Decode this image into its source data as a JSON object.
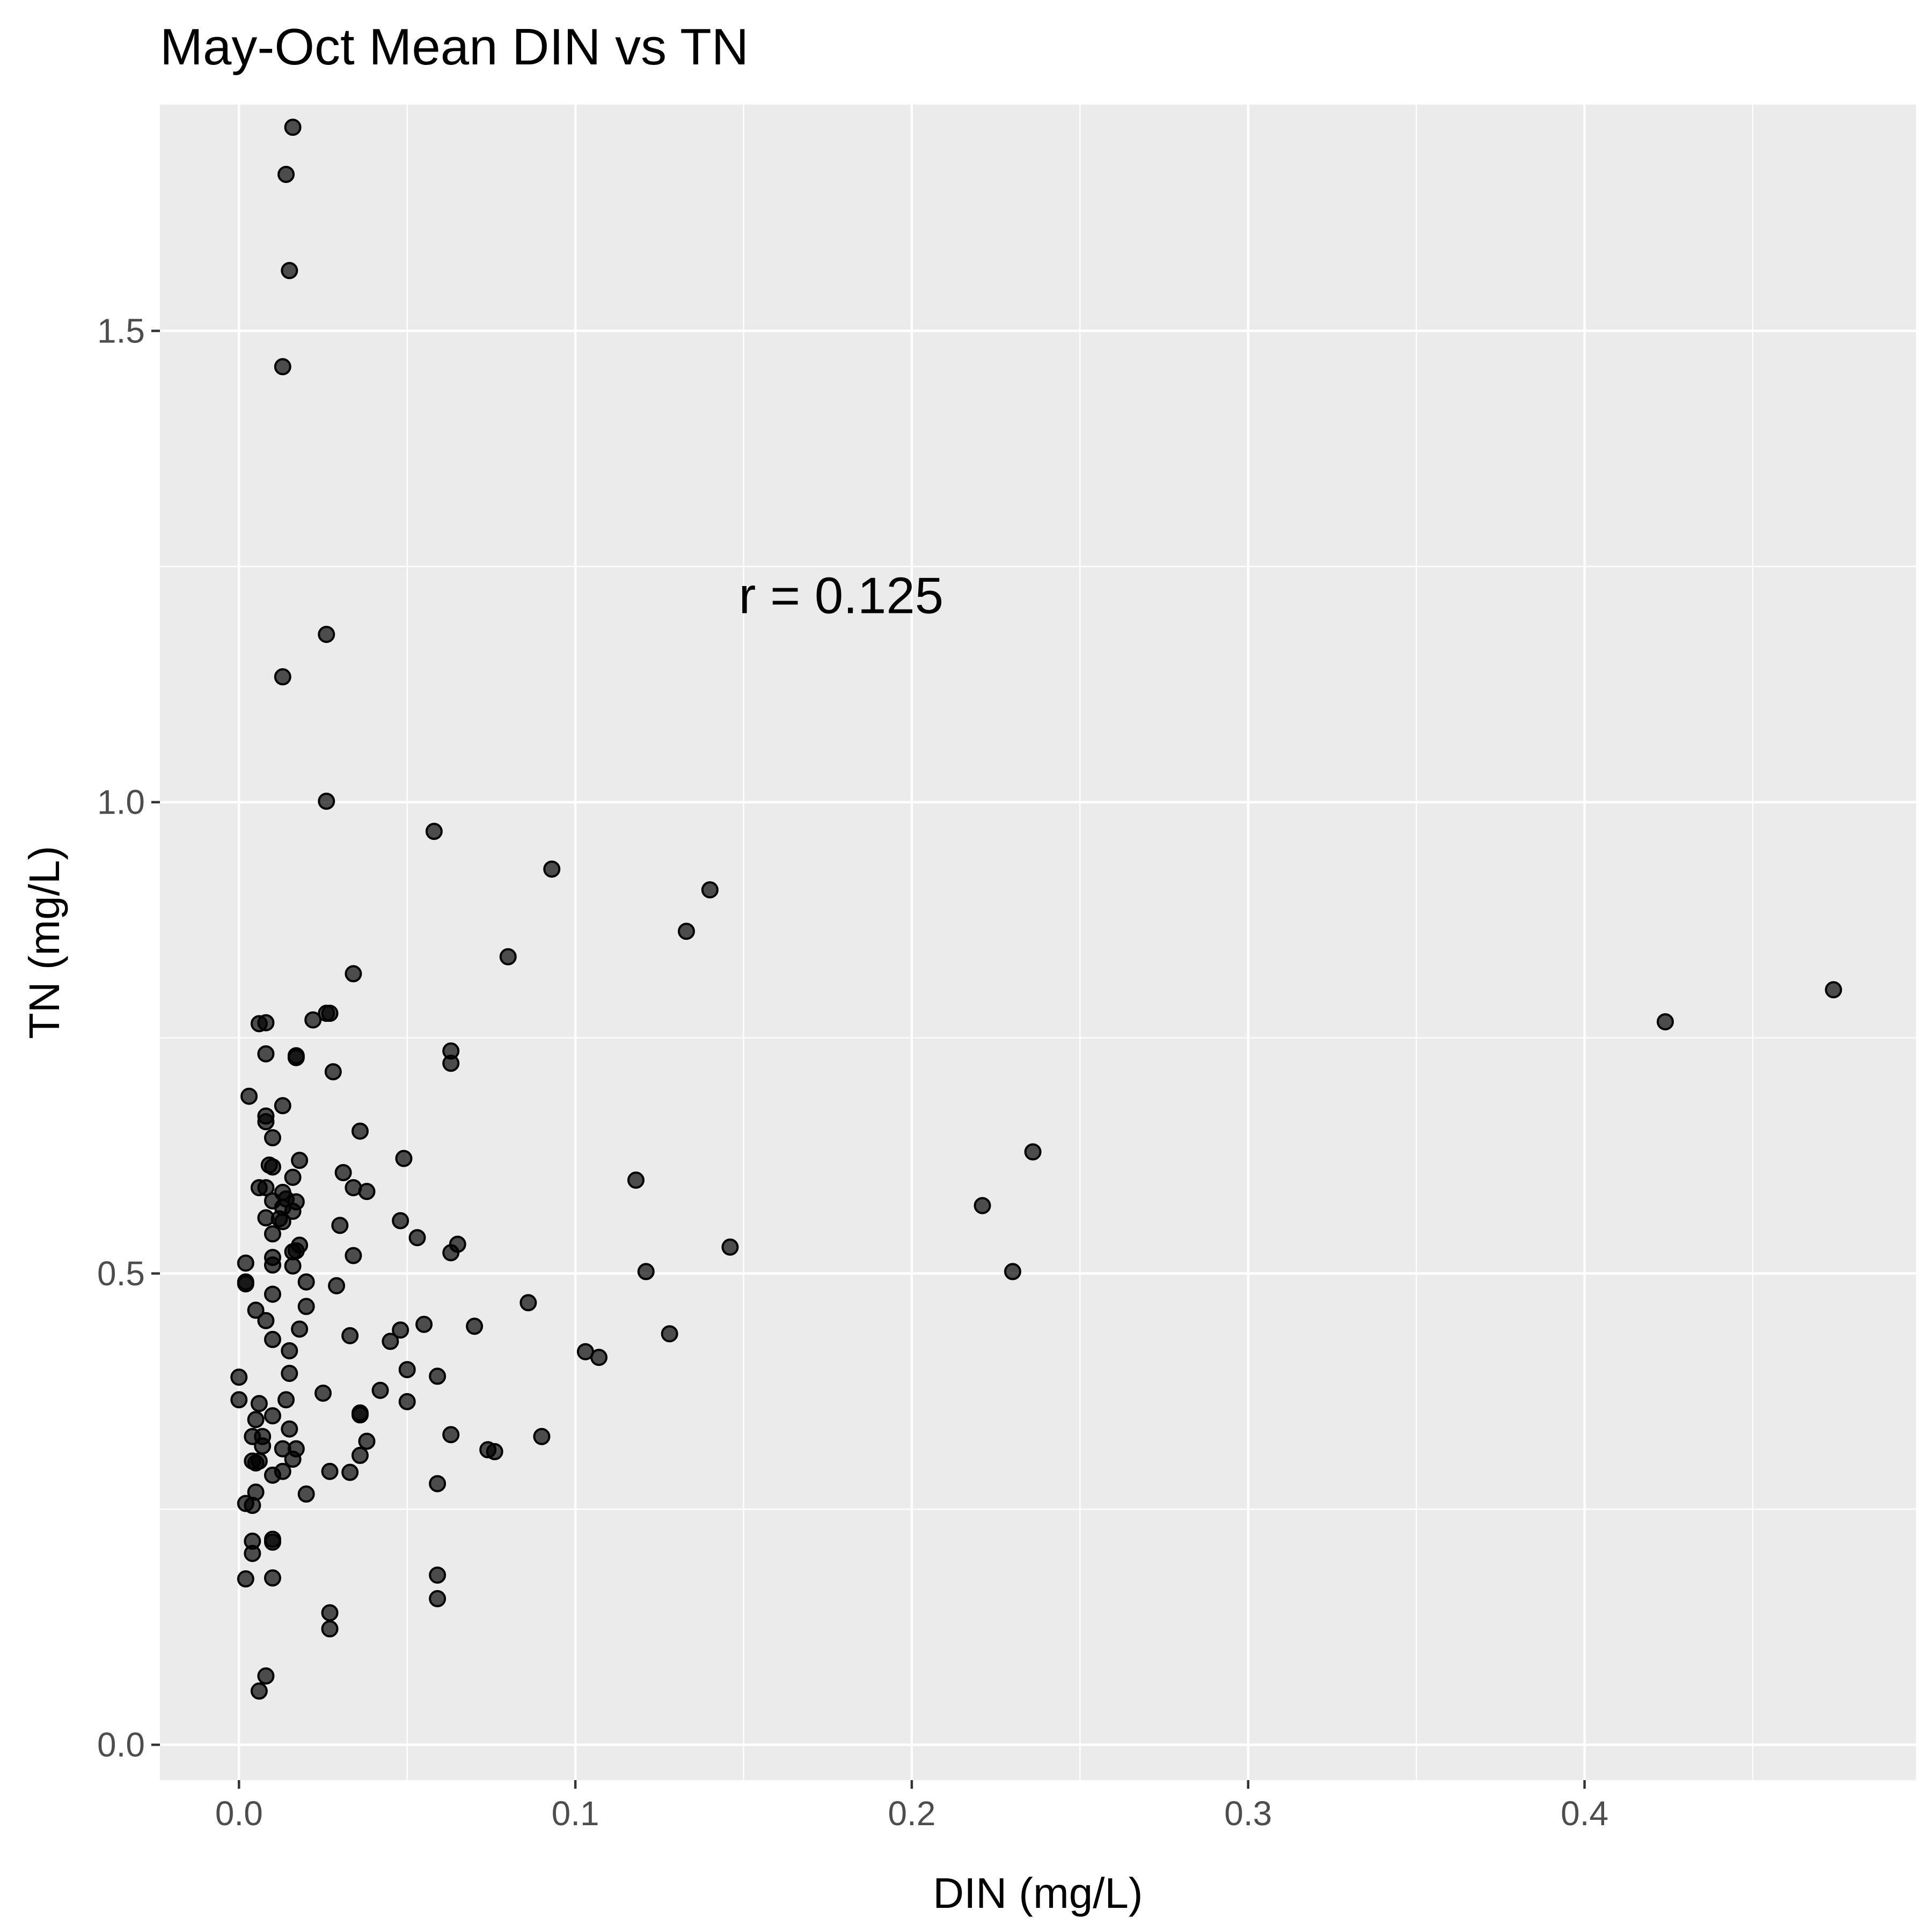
{
  "chart_data": {
    "type": "scatter",
    "title": "May-Oct Mean DIN vs TN",
    "xlabel": "DIN (mg/L)",
    "ylabel": "TN (mg/L)",
    "xlim": [
      -0.0235,
      0.4985
    ],
    "ylim": [
      -0.0375,
      1.74
    ],
    "xticks": [
      0.0,
      0.1,
      0.2,
      0.3,
      0.4
    ],
    "xtick_labels": [
      "0.0",
      "0.1",
      "0.2",
      "0.3",
      "0.4"
    ],
    "yticks": [
      0.0,
      0.5,
      1.0,
      1.5
    ],
    "ytick_labels": [
      "0.0",
      "0.5",
      "1.0",
      "1.5"
    ],
    "grid": true,
    "legend": "none",
    "annotation": {
      "text": "r = 0.125",
      "x": 0.179,
      "y": 1.22
    },
    "colors": {
      "panel": "#ebebeb",
      "grid": "#ffffff",
      "point": "#000000",
      "tick_text": "#4d4d4d"
    },
    "points": [
      [
        0.016,
        1.716
      ],
      [
        0.014,
        1.666
      ],
      [
        0.015,
        1.564
      ],
      [
        0.013,
        1.462
      ],
      [
        0.026,
        1.178
      ],
      [
        0.013,
        1.133
      ],
      [
        0.026,
        1.001
      ],
      [
        0.058,
        0.969
      ],
      [
        0.093,
        0.929
      ],
      [
        0.14,
        0.907
      ],
      [
        0.133,
        0.863
      ],
      [
        0.08,
        0.836
      ],
      [
        0.034,
        0.818
      ],
      [
        0.026,
        0.776
      ],
      [
        0.027,
        0.776
      ],
      [
        0.022,
        0.769
      ],
      [
        0.006,
        0.765
      ],
      [
        0.008,
        0.766
      ],
      [
        0.008,
        0.733
      ],
      [
        0.017,
        0.729
      ],
      [
        0.017,
        0.731
      ],
      [
        0.063,
        0.736
      ],
      [
        0.063,
        0.723
      ],
      [
        0.028,
        0.714
      ],
      [
        0.474,
        0.801
      ],
      [
        0.424,
        0.767
      ],
      [
        0.003,
        0.688
      ],
      [
        0.013,
        0.678
      ],
      [
        0.008,
        0.667
      ],
      [
        0.008,
        0.661
      ],
      [
        0.036,
        0.651
      ],
      [
        0.01,
        0.644
      ],
      [
        0.236,
        0.629
      ],
      [
        0.049,
        0.622
      ],
      [
        0.018,
        0.62
      ],
      [
        0.009,
        0.615
      ],
      [
        0.01,
        0.613
      ],
      [
        0.031,
        0.607
      ],
      [
        0.016,
        0.602
      ],
      [
        0.118,
        0.599
      ],
      [
        0.006,
        0.591
      ],
      [
        0.008,
        0.591
      ],
      [
        0.034,
        0.591
      ],
      [
        0.038,
        0.587
      ],
      [
        0.013,
        0.586
      ],
      [
        0.014,
        0.579
      ],
      [
        0.01,
        0.577
      ],
      [
        0.017,
        0.576
      ],
      [
        0.013,
        0.57
      ],
      [
        0.221,
        0.572
      ],
      [
        0.016,
        0.566
      ],
      [
        0.008,
        0.559
      ],
      [
        0.012,
        0.558
      ],
      [
        0.013,
        0.555
      ],
      [
        0.048,
        0.556
      ],
      [
        0.03,
        0.551
      ],
      [
        0.01,
        0.542
      ],
      [
        0.053,
        0.538
      ],
      [
        0.065,
        0.531
      ],
      [
        0.018,
        0.53
      ],
      [
        0.146,
        0.528
      ],
      [
        0.017,
        0.524
      ],
      [
        0.016,
        0.523
      ],
      [
        0.063,
        0.522
      ],
      [
        0.034,
        0.519
      ],
      [
        0.01,
        0.517
      ],
      [
        0.002,
        0.511
      ],
      [
        0.01,
        0.509
      ],
      [
        0.016,
        0.508
      ],
      [
        0.121,
        0.502
      ],
      [
        0.23,
        0.502
      ],
      [
        0.002,
        0.491
      ],
      [
        0.002,
        0.489
      ],
      [
        0.02,
        0.491
      ],
      [
        0.029,
        0.487
      ],
      [
        0.01,
        0.478
      ],
      [
        0.086,
        0.469
      ],
      [
        0.02,
        0.465
      ],
      [
        0.005,
        0.461
      ],
      [
        0.008,
        0.45
      ],
      [
        0.055,
        0.446
      ],
      [
        0.07,
        0.444
      ],
      [
        0.018,
        0.441
      ],
      [
        0.048,
        0.44
      ],
      [
        0.128,
        0.436
      ],
      [
        0.033,
        0.434
      ],
      [
        0.01,
        0.43
      ],
      [
        0.045,
        0.428
      ],
      [
        0.015,
        0.418
      ],
      [
        0.103,
        0.417
      ],
      [
        0.107,
        0.411
      ],
      [
        0.05,
        0.398
      ],
      [
        0.015,
        0.394
      ],
      [
        0.0,
        0.39
      ],
      [
        0.059,
        0.391
      ],
      [
        0.042,
        0.376
      ],
      [
        0.025,
        0.373
      ],
      [
        0.0,
        0.366
      ],
      [
        0.014,
        0.366
      ],
      [
        0.05,
        0.364
      ],
      [
        0.006,
        0.362
      ],
      [
        0.036,
        0.352
      ],
      [
        0.036,
        0.35
      ],
      [
        0.01,
        0.349
      ],
      [
        0.005,
        0.345
      ],
      [
        0.015,
        0.335
      ],
      [
        0.004,
        0.327
      ],
      [
        0.007,
        0.327
      ],
      [
        0.063,
        0.329
      ],
      [
        0.09,
        0.327
      ],
      [
        0.038,
        0.322
      ],
      [
        0.007,
        0.317
      ],
      [
        0.013,
        0.314
      ],
      [
        0.017,
        0.314
      ],
      [
        0.074,
        0.313
      ],
      [
        0.076,
        0.311
      ],
      [
        0.036,
        0.307
      ],
      [
        0.004,
        0.301
      ],
      [
        0.006,
        0.301
      ],
      [
        0.016,
        0.303
      ],
      [
        0.005,
        0.299
      ],
      [
        0.013,
        0.29
      ],
      [
        0.027,
        0.29
      ],
      [
        0.033,
        0.289
      ],
      [
        0.01,
        0.286
      ],
      [
        0.059,
        0.277
      ],
      [
        0.005,
        0.268
      ],
      [
        0.02,
        0.266
      ],
      [
        0.002,
        0.256
      ],
      [
        0.004,
        0.254
      ],
      [
        0.004,
        0.216
      ],
      [
        0.01,
        0.218
      ],
      [
        0.01,
        0.215
      ],
      [
        0.004,
        0.203
      ],
      [
        0.002,
        0.176
      ],
      [
        0.01,
        0.177
      ],
      [
        0.059,
        0.18
      ],
      [
        0.059,
        0.155
      ],
      [
        0.027,
        0.14
      ],
      [
        0.027,
        0.123
      ],
      [
        0.008,
        0.073
      ],
      [
        0.006,
        0.057
      ]
    ]
  }
}
